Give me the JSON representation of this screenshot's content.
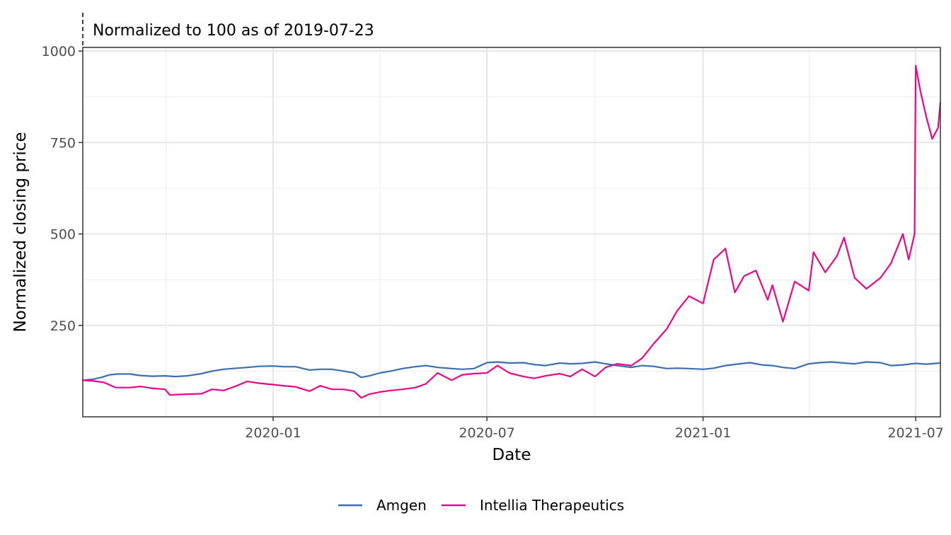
{
  "chart_data": {
    "type": "line",
    "title": "",
    "annotation": "Normalized to 100 as of 2019-07-23",
    "xlabel": "Date",
    "ylabel": "Normalized closing price",
    "xlim": [
      "2019-07-23",
      "2021-07-22"
    ],
    "ylim": [
      0,
      1010
    ],
    "x_ticks": [
      "2020-01-01",
      "2020-07-01",
      "2021-01-01",
      "2021-07-01"
    ],
    "x_tick_labels": [
      "2020-01",
      "2020-07",
      "2021-01",
      "2021-07"
    ],
    "y_ticks": [
      250,
      500,
      750,
      1000
    ],
    "y_tick_labels": [
      "250",
      "500",
      "750",
      "1000"
    ],
    "grid": true,
    "legend_position": "bottom",
    "series": [
      {
        "name": "Amgen",
        "color": "#3a6fb0",
        "points": [
          [
            "2019-07-23",
            100
          ],
          [
            "2019-08-01",
            103
          ],
          [
            "2019-08-08",
            108
          ],
          [
            "2019-08-15",
            115
          ],
          [
            "2019-08-22",
            117
          ],
          [
            "2019-09-01",
            117
          ],
          [
            "2019-09-10",
            113
          ],
          [
            "2019-09-20",
            111
          ],
          [
            "2019-10-01",
            112
          ],
          [
            "2019-10-10",
            110
          ],
          [
            "2019-10-20",
            112
          ],
          [
            "2019-11-01",
            118
          ],
          [
            "2019-11-10",
            125
          ],
          [
            "2019-11-20",
            130
          ],
          [
            "2019-12-01",
            133
          ],
          [
            "2019-12-10",
            135
          ],
          [
            "2019-12-20",
            138
          ],
          [
            "2020-01-01",
            139
          ],
          [
            "2020-01-10",
            137
          ],
          [
            "2020-01-20",
            137
          ],
          [
            "2020-02-01",
            128
          ],
          [
            "2020-02-10",
            130
          ],
          [
            "2020-02-20",
            130
          ],
          [
            "2020-03-01",
            125
          ],
          [
            "2020-03-10",
            120
          ],
          [
            "2020-03-16",
            108
          ],
          [
            "2020-03-23",
            112
          ],
          [
            "2020-04-01",
            120
          ],
          [
            "2020-04-10",
            125
          ],
          [
            "2020-04-20",
            132
          ],
          [
            "2020-05-01",
            137
          ],
          [
            "2020-05-10",
            140
          ],
          [
            "2020-05-20",
            135
          ],
          [
            "2020-06-01",
            132
          ],
          [
            "2020-06-10",
            130
          ],
          [
            "2020-06-20",
            132
          ],
          [
            "2020-07-01",
            148
          ],
          [
            "2020-07-10",
            150
          ],
          [
            "2020-07-20",
            147
          ],
          [
            "2020-08-01",
            148
          ],
          [
            "2020-08-10",
            143
          ],
          [
            "2020-08-20",
            140
          ],
          [
            "2020-09-01",
            147
          ],
          [
            "2020-09-10",
            145
          ],
          [
            "2020-09-20",
            146
          ],
          [
            "2020-10-01",
            150
          ],
          [
            "2020-10-10",
            145
          ],
          [
            "2020-10-20",
            140
          ],
          [
            "2020-11-01",
            135
          ],
          [
            "2020-11-10",
            140
          ],
          [
            "2020-11-20",
            138
          ],
          [
            "2020-12-01",
            132
          ],
          [
            "2020-12-10",
            133
          ],
          [
            "2020-12-20",
            132
          ],
          [
            "2021-01-01",
            130
          ],
          [
            "2021-01-10",
            133
          ],
          [
            "2021-01-20",
            140
          ],
          [
            "2021-02-01",
            145
          ],
          [
            "2021-02-10",
            148
          ],
          [
            "2021-02-20",
            142
          ],
          [
            "2021-03-01",
            140
          ],
          [
            "2021-03-10",
            135
          ],
          [
            "2021-03-20",
            132
          ],
          [
            "2021-04-01",
            145
          ],
          [
            "2021-04-10",
            148
          ],
          [
            "2021-04-20",
            150
          ],
          [
            "2021-05-01",
            147
          ],
          [
            "2021-05-10",
            145
          ],
          [
            "2021-05-20",
            150
          ],
          [
            "2021-06-01",
            148
          ],
          [
            "2021-06-10",
            140
          ],
          [
            "2021-06-20",
            142
          ],
          [
            "2021-07-01",
            146
          ],
          [
            "2021-07-10",
            144
          ],
          [
            "2021-07-22",
            147
          ]
        ]
      },
      {
        "name": "Intellia Therapeutics",
        "color": "#e8078a",
        "points": [
          [
            "2019-07-23",
            100
          ],
          [
            "2019-08-01",
            98
          ],
          [
            "2019-08-10",
            94
          ],
          [
            "2019-08-20",
            80
          ],
          [
            "2019-09-01",
            80
          ],
          [
            "2019-09-10",
            83
          ],
          [
            "2019-09-20",
            78
          ],
          [
            "2019-10-01",
            75
          ],
          [
            "2019-10-05",
            60
          ],
          [
            "2019-10-20",
            62
          ],
          [
            "2019-11-01",
            63
          ],
          [
            "2019-11-10",
            75
          ],
          [
            "2019-11-20",
            72
          ],
          [
            "2019-12-01",
            85
          ],
          [
            "2019-12-10",
            97
          ],
          [
            "2019-12-20",
            92
          ],
          [
            "2020-01-01",
            88
          ],
          [
            "2020-01-10",
            85
          ],
          [
            "2020-01-20",
            82
          ],
          [
            "2020-02-01",
            70
          ],
          [
            "2020-02-10",
            85
          ],
          [
            "2020-02-20",
            75
          ],
          [
            "2020-03-01",
            75
          ],
          [
            "2020-03-10",
            70
          ],
          [
            "2020-03-16",
            52
          ],
          [
            "2020-03-23",
            62
          ],
          [
            "2020-04-01",
            68
          ],
          [
            "2020-04-10",
            72
          ],
          [
            "2020-04-20",
            75
          ],
          [
            "2020-05-01",
            80
          ],
          [
            "2020-05-10",
            90
          ],
          [
            "2020-05-20",
            120
          ],
          [
            "2020-06-01",
            100
          ],
          [
            "2020-06-10",
            115
          ],
          [
            "2020-06-20",
            118
          ],
          [
            "2020-07-01",
            120
          ],
          [
            "2020-07-10",
            140
          ],
          [
            "2020-07-20",
            120
          ],
          [
            "2020-08-01",
            110
          ],
          [
            "2020-08-10",
            105
          ],
          [
            "2020-08-20",
            112
          ],
          [
            "2020-09-01",
            118
          ],
          [
            "2020-09-10",
            110
          ],
          [
            "2020-09-20",
            130
          ],
          [
            "2020-10-01",
            110
          ],
          [
            "2020-10-10",
            135
          ],
          [
            "2020-10-20",
            145
          ],
          [
            "2020-11-01",
            140
          ],
          [
            "2020-11-10",
            160
          ],
          [
            "2020-11-20",
            200
          ],
          [
            "2020-12-01",
            240
          ],
          [
            "2020-12-10",
            290
          ],
          [
            "2020-12-20",
            330
          ],
          [
            "2021-01-01",
            310
          ],
          [
            "2021-01-10",
            430
          ],
          [
            "2021-01-20",
            460
          ],
          [
            "2021-01-28",
            340
          ],
          [
            "2021-02-05",
            385
          ],
          [
            "2021-02-15",
            400
          ],
          [
            "2021-02-25",
            320
          ],
          [
            "2021-03-01",
            360
          ],
          [
            "2021-03-10",
            260
          ],
          [
            "2021-03-20",
            370
          ],
          [
            "2021-04-01",
            345
          ],
          [
            "2021-04-05",
            450
          ],
          [
            "2021-04-15",
            395
          ],
          [
            "2021-04-25",
            440
          ],
          [
            "2021-05-01",
            490
          ],
          [
            "2021-05-10",
            380
          ],
          [
            "2021-05-20",
            350
          ],
          [
            "2021-06-01",
            380
          ],
          [
            "2021-06-10",
            420
          ],
          [
            "2021-06-20",
            500
          ],
          [
            "2021-06-25",
            430
          ],
          [
            "2021-06-30",
            500
          ],
          [
            "2021-07-01",
            960
          ],
          [
            "2021-07-05",
            890
          ],
          [
            "2021-07-10",
            820
          ],
          [
            "2021-07-15",
            760
          ],
          [
            "2021-07-20",
            790
          ],
          [
            "2021-07-22",
            860
          ]
        ]
      }
    ]
  }
}
